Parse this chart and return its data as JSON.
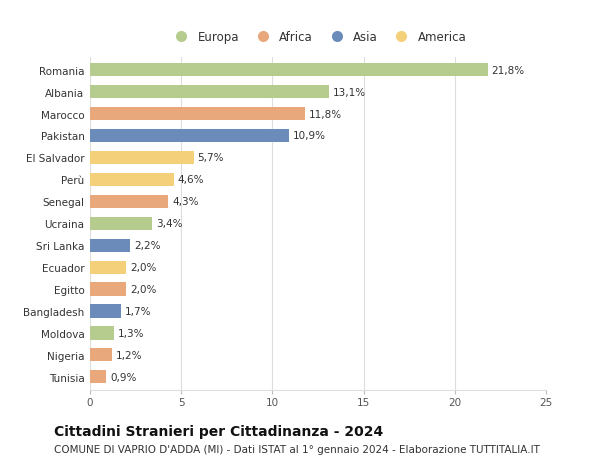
{
  "categories": [
    "Romania",
    "Albania",
    "Marocco",
    "Pakistan",
    "El Salvador",
    "Perù",
    "Senegal",
    "Ucraina",
    "Sri Lanka",
    "Ecuador",
    "Egitto",
    "Bangladesh",
    "Moldova",
    "Nigeria",
    "Tunisia"
  ],
  "values": [
    21.8,
    13.1,
    11.8,
    10.9,
    5.7,
    4.6,
    4.3,
    3.4,
    2.2,
    2.0,
    2.0,
    1.7,
    1.3,
    1.2,
    0.9
  ],
  "labels": [
    "21,8%",
    "13,1%",
    "11,8%",
    "10,9%",
    "5,7%",
    "4,6%",
    "4,3%",
    "3,4%",
    "2,2%",
    "2,0%",
    "2,0%",
    "1,7%",
    "1,3%",
    "1,2%",
    "0,9%"
  ],
  "continents": [
    "Europa",
    "Europa",
    "Africa",
    "Asia",
    "America",
    "America",
    "Africa",
    "Europa",
    "Asia",
    "America",
    "Africa",
    "Asia",
    "Europa",
    "Africa",
    "Africa"
  ],
  "continent_colors": {
    "Europa": "#b5cc8e",
    "Africa": "#e8a87c",
    "Asia": "#6b8cba",
    "America": "#f5d07a"
  },
  "legend_order": [
    "Europa",
    "Africa",
    "Asia",
    "America"
  ],
  "title": "Cittadini Stranieri per Cittadinanza - 2024",
  "subtitle": "COMUNE DI VAPRIO D'ADDA (MI) - Dati ISTAT al 1° gennaio 2024 - Elaborazione TUTTITALIA.IT",
  "xlim": [
    0,
    25
  ],
  "xticks": [
    0,
    5,
    10,
    15,
    20,
    25
  ],
  "background_color": "#ffffff",
  "grid_color": "#dddddd",
  "bar_height": 0.6,
  "title_fontsize": 10,
  "subtitle_fontsize": 7.5,
  "label_fontsize": 7.5,
  "tick_fontsize": 7.5,
  "legend_fontsize": 8.5
}
